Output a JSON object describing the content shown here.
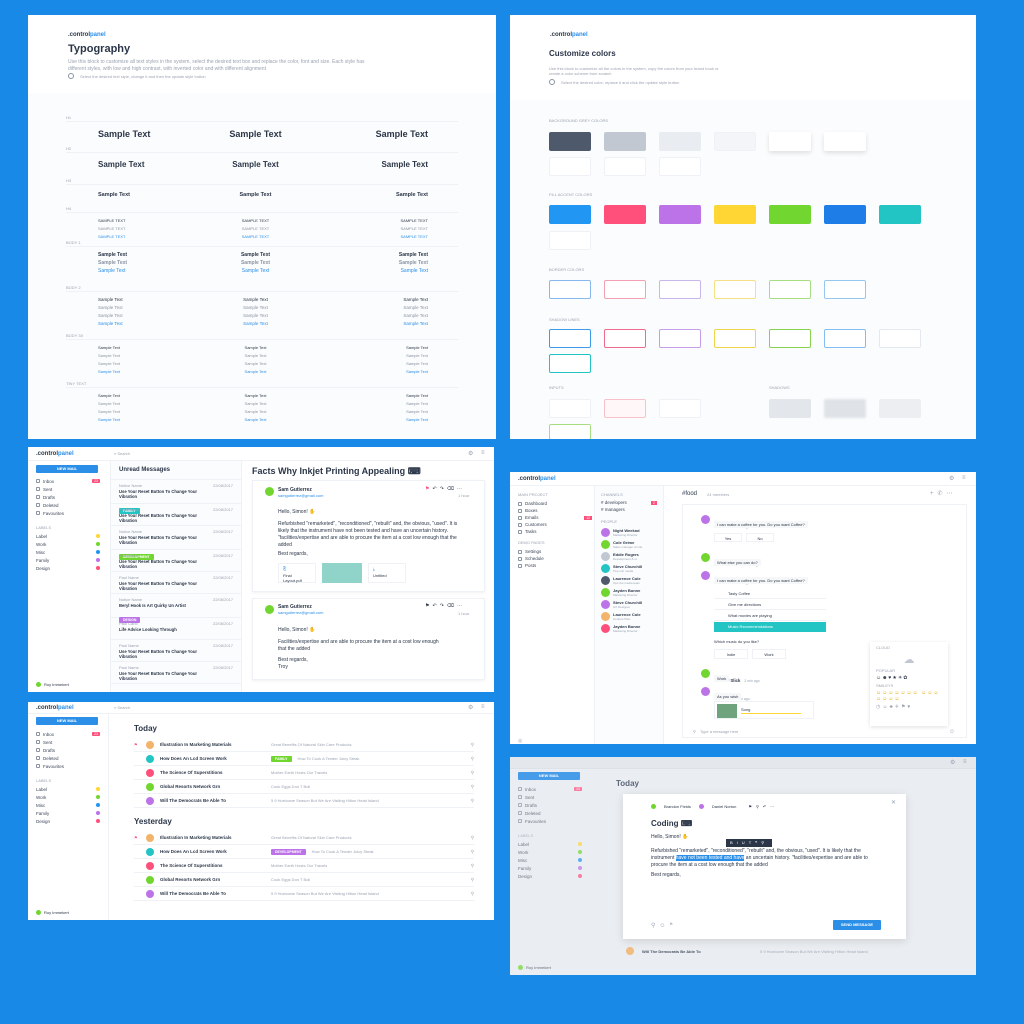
{
  "brand": {
    "prefix": ".",
    "control": "control",
    "panel": "panel"
  },
  "typography": {
    "title": "Typography",
    "desc": "Use this block to customize all text styles in the system, select the desired text box and replace the color, font and size. Each style has different styles, with low and high contrast, with inverted color and with different alignment",
    "hint": "Select the desired text style, change it and then the update style button",
    "sample": "Sample Text",
    "sample_caps": "SAMPLE TEXT",
    "rows": [
      "H1",
      "H2",
      "H3",
      "H4",
      "BODY 1",
      "BODY 2",
      "BODY 3X",
      "TINY TEXT"
    ]
  },
  "colors": {
    "title": "Customize colors",
    "desc": "Use this block to customize all the colors in the system, copy the colors from your brand book or create a color scheme from scratch",
    "hint": "Select the desired color, replace it and click the update style button",
    "sections": [
      "BACKGROUND GREY COLORS",
      "FILL ACCENT COLORS",
      "BORDER COLORS",
      "SHADOW LINES",
      "INPUTS",
      "SHADOWS"
    ],
    "grey": [
      "#4e5a6b",
      "#c2c8d1",
      "#e9edf2",
      "#f3f5f8",
      "#ffffff",
      "#ffffff"
    ],
    "accent": [
      "#2196f3",
      "#ff4f7b",
      "#bd73e8",
      "#ffd633",
      "#72d630",
      "#1e7de6",
      "#23c4c4"
    ],
    "border": [
      "#87b8ee",
      "#f4a0b3",
      "#c9b6ea",
      "#f5e087",
      "#a7df80",
      "#97c6f0"
    ],
    "outline": [
      "#3d9be9",
      "#f06b8b",
      "#c49ee8",
      "#f2d44a",
      "#86d24e",
      "#84bdf0",
      "#e3e9ef"
    ]
  },
  "mail": {
    "search": "Search",
    "new_mail": "NEW MAIL",
    "folders": [
      {
        "label": "Inbox",
        "count": "23"
      },
      {
        "label": "Sent",
        "count": ""
      },
      {
        "label": "Drafts",
        "count": ""
      },
      {
        "label": "Deleted",
        "count": ""
      },
      {
        "label": "Favourites",
        "count": ""
      }
    ],
    "labels_heading": "LABELS",
    "labels": [
      {
        "name": "Label",
        "color": "#ffd633"
      },
      {
        "name": "Work",
        "color": "#72d630"
      },
      {
        "name": "Misc",
        "color": "#2196f3"
      },
      {
        "name": "Family",
        "color": "#bd73e8"
      },
      {
        "name": "Design",
        "color": "#ff4f7b"
      }
    ],
    "user": "Roy Immekert",
    "unread_heading": "Unread Messages",
    "unread": [
      {
        "from": "Notice Name",
        "date": "22/08/2017",
        "subject": "Use Your Reset Button To Change Your Vibration",
        "tag": "FAMILY",
        "tag_color": "#23c4c4"
      },
      {
        "from": "Paul Name",
        "date": "22/08/2017",
        "subject": "Use Your Reset Button To Change Your Vibration",
        "tag": "",
        "tag_color": ""
      },
      {
        "from": "Notice Name",
        "date": "22/08/2017",
        "subject": "Use Your Reset Button To Change Your Vibration",
        "tag": "DEVELOPMENT",
        "tag_color": "#72d630"
      },
      {
        "from": "Paul Name",
        "date": "22/08/2017",
        "subject": "Use Your Reset Button To Change Your Vibration",
        "tag": "",
        "tag_color": ""
      },
      {
        "from": "Paul Name",
        "date": "22/08/2017",
        "subject": "Use Your Reset Button To Change Your Vibration",
        "tag": "",
        "tag_color": ""
      },
      {
        "from": "Notice Name",
        "date": "22/08/2017",
        "subject": "Beryl Hook Is Art Quirky Un Artist",
        "tag": "DESIGN",
        "tag_color": "#bd73e8"
      },
      {
        "from": "Paul Carlo",
        "date": "22/08/2017",
        "subject": "Life Advice Looking Through",
        "tag": "",
        "tag_color": ""
      },
      {
        "from": "Paul Name",
        "date": "22/08/2017",
        "subject": "Use Your Reset Button To Change Your Vibration",
        "tag": "",
        "tag_color": ""
      },
      {
        "from": "Paul Name",
        "date": "22/08/2017",
        "subject": "Use Your Reset Button To Change Your Vibration",
        "tag": "",
        "tag_color": ""
      }
    ],
    "thread_title": "Facts Why Inkjet  Printing Appealing",
    "sender": "Sam Gutierrez",
    "sender_email": "samgutierrez@gmail.com",
    "time": "1 hour",
    "greeting": "Hello, Simon!",
    "body": "Refurbished \"remarketed\", \"reconditioned\", \"rebuilt\" and, the obvious, \"used\". It is likely that the instrument have not been tested and have an uncertain history. \"facilities/expertise and are able to procure the item at a cost low enough that the added",
    "body2": "Facilities/expertise and are able to procure the item at a cost low enough that the added",
    "regards": "Best regards,",
    "signature": "Troy",
    "attachments": [
      "Final Layout.pdf",
      "",
      "Untitled"
    ],
    "today": "Today",
    "yesterday": "Yesterday",
    "list": [
      {
        "title": "Illustration In Marketing Materials",
        "preview": "Great Benefits Of Natural Skin Care Products",
        "tag": "",
        "tag_color": ""
      },
      {
        "title": "How Does An Lcd Screen Work",
        "preview": "How To Cook A Tender Juicy Steak",
        "tag": "FAMILY",
        "tag_color": "#72d630"
      },
      {
        "title": "The Science Of Superstitions",
        "preview": "Mother Earth Hosts Our Travels",
        "tag": "",
        "tag_color": ""
      },
      {
        "title": "Global Resorts Network Grn",
        "preview": "Cook Eggs Don T Boil",
        "tag": "",
        "tag_color": ""
      },
      {
        "title": "Will The Democrats Be Able To",
        "preview": "5 9 Hurricane Season But We Are Visiting Hilton Head Island",
        "tag": "",
        "tag_color": ""
      }
    ],
    "list_y_tag": "DEVELOPMENT"
  },
  "chat": {
    "projects_heading": "MAIN PROJECT",
    "nav": [
      {
        "label": "Dashboard",
        "count": ""
      },
      {
        "label": "Boxes",
        "count": ""
      },
      {
        "label": "Emails",
        "count": "12"
      },
      {
        "label": "Customers",
        "count": ""
      },
      {
        "label": "Tasks",
        "count": ""
      }
    ],
    "extra_heading": "DEMO PAGES",
    "extra": [
      "Settings",
      "Schedule",
      "Posts"
    ],
    "channels_heading": "CHANNELS",
    "channels": [
      {
        "label": "# developers",
        "count": "2"
      },
      {
        "label": "# managers",
        "count": ""
      }
    ],
    "people_heading": "PEOPLE",
    "people": [
      {
        "name": "Night Weeknd",
        "role": "Marketing Director",
        "color": "#bd73e8"
      },
      {
        "name": "Cole Grime",
        "role": "Sales manager of role",
        "color": "#72d630"
      },
      {
        "name": "Eddie Rogers",
        "role": "Development & sr.",
        "color": "#c2c8d1"
      },
      {
        "name": "Steve Churchill",
        "role": "Two min media",
        "color": "#23c4c4"
      },
      {
        "name": "Laurence Cole",
        "role": "Ops the media team",
        "color": "#4e5a6b"
      },
      {
        "name": "Jayden Bonne",
        "role": "Marketing Director",
        "color": "#72d630"
      },
      {
        "name": "Steve Churchill",
        "role": "UX Designer",
        "color": "#bd73e8"
      },
      {
        "name": "Laurence Cole",
        "role": "Content Plan",
        "color": "#f2b36b"
      },
      {
        "name": "Jayden Bonne",
        "role": "Marketing Director",
        "color": "#ff4f7b"
      }
    ],
    "channel": "#food",
    "members": "24 members",
    "messages": [
      {
        "name": "ChatBot",
        "time": "2 min ago",
        "text": "I can make a coffee for you. Do you want Coffee?"
      },
      {
        "name": "Mathew Slick",
        "time": "2 min ago",
        "text": "What else you can do?"
      },
      {
        "name": "ChatBot",
        "time": "2 min ago",
        "text": "I can make a coffee for you. Do you want Coffee?"
      },
      {
        "name": "Mathew Slick",
        "time": "2 min ago",
        "text": "Work"
      },
      {
        "name": "ChatBot",
        "time": "2 min ago",
        "text": "As you wish"
      }
    ],
    "quick": [
      "Yes",
      "No"
    ],
    "menu": [
      "Tasty Coffee",
      "Give me directions",
      "What movies are playing",
      "Music Recommendations"
    ],
    "question": "Which music do you like?",
    "answers": [
      "Indie",
      "Work"
    ],
    "track": "Song",
    "input": "Type a message here",
    "emoji_heading": "CLOUD",
    "emoji_popular": "POPULAR",
    "emoji_smileys": "SMILEYS"
  },
  "compose": {
    "to1": "Brandon Fields",
    "to2": "Daniel Norton",
    "title": "Coding",
    "greeting": "Hello, Simon!",
    "body_a": "Refurbished \"remarketed\", \"reconditioned\", \"rebuilt\" and, the obvious, \"used\". It is likely that the instrument",
    "highlight": "have not been tested and have",
    "body_b": "an uncertain history. \"facilities/expertise and are able to procure the item at a cost low enough that the added",
    "regards": "Best regards,",
    "send": "SEND MESSAGE",
    "last_title": "Will The Democrats Be Able To",
    "last_preview": "5 9 Hurricane Season But We Are Visiting Hilton Head Island"
  }
}
